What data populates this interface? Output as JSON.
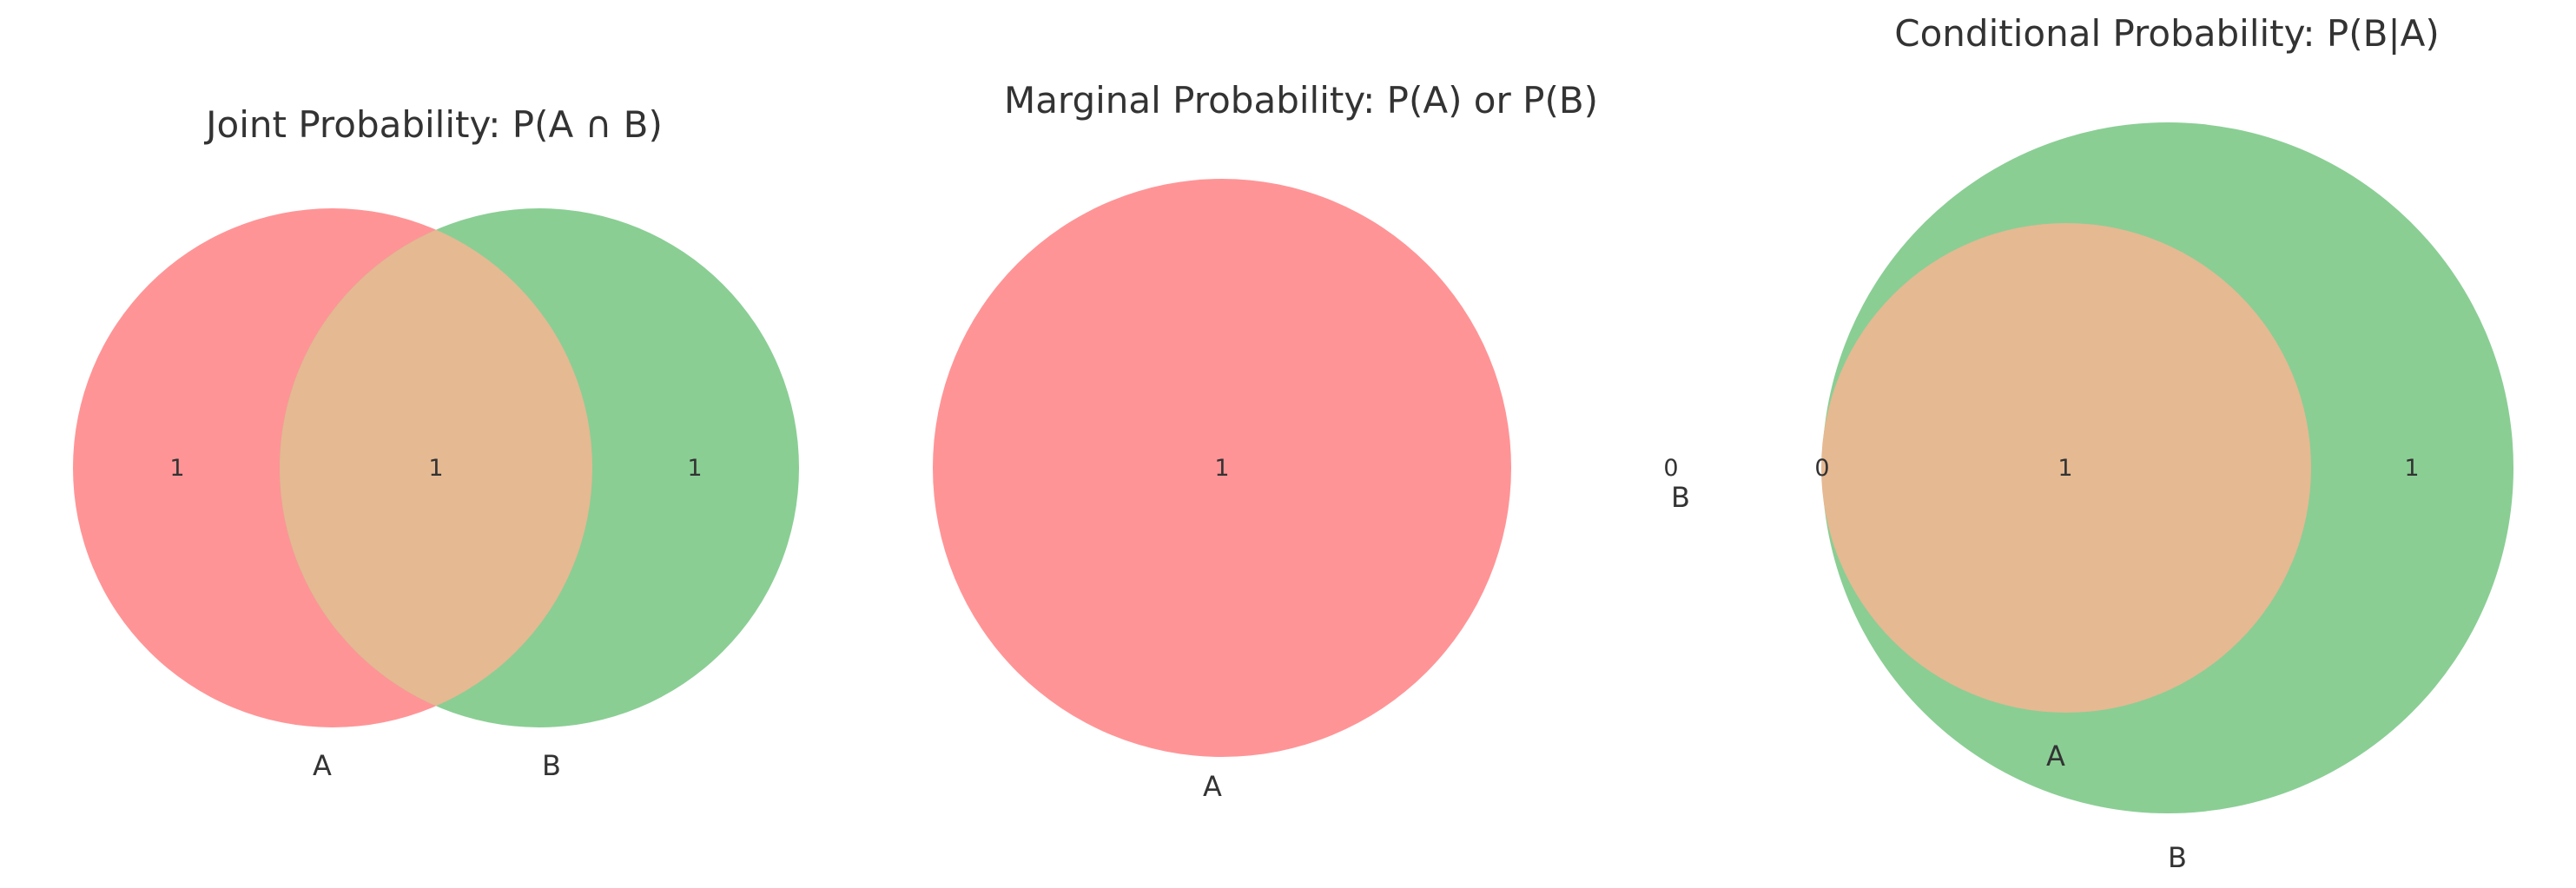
{
  "colors": {
    "set_a": "#ff9496",
    "set_b": "#8ace94",
    "overlap": "#e5b992",
    "text": "#333333",
    "background": "#ffffff"
  },
  "diagrams": [
    {
      "title": "Joint Probability: P(A ∩ B)",
      "labels": {
        "a": "A",
        "b": "B"
      },
      "counts": {
        "a_only": "1",
        "both": "1",
        "b_only": "1"
      }
    },
    {
      "title": "Marginal Probability: P(A) or P(B)",
      "labels": {
        "a": "A",
        "b": "B"
      },
      "counts": {
        "a_only": "1",
        "b_only": "0"
      }
    },
    {
      "title": "Conditional Probability: P(B|A)",
      "labels": {
        "a": "A",
        "b": "B"
      },
      "counts": {
        "a_only": "0",
        "both": "1",
        "b_only": "1"
      }
    }
  ]
}
